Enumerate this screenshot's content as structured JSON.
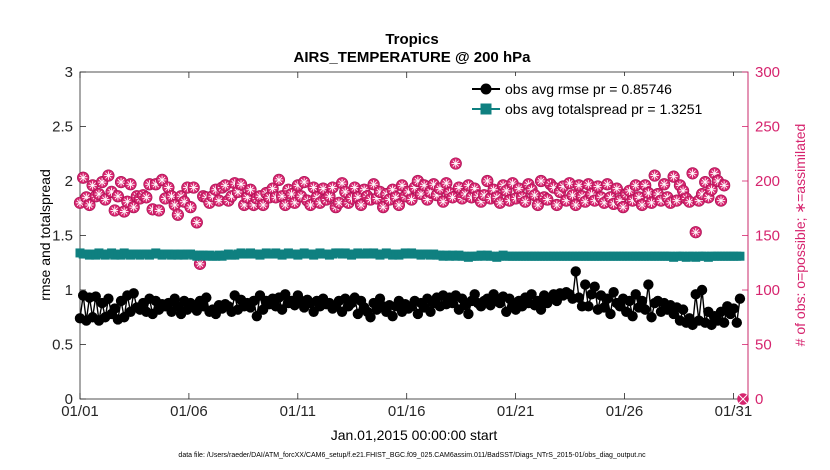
{
  "chart_data": {
    "type": "line",
    "title": "Tropics",
    "subtitle": "AIRS_TEMPERATURE @ 200 hPa",
    "xlabel": "Jan.01,2015 00:00:00 start",
    "ylabel": "rmse and totalspread",
    "ylabel_right": "# of obs: o=possible; ∗=assimilated",
    "ylim": [
      0,
      3
    ],
    "ylim_right": [
      0,
      300
    ],
    "xlim": [
      0,
      30.67
    ],
    "yticks": [
      "0",
      "0.5",
      "1",
      "1.5",
      "2",
      "2.5",
      "3"
    ],
    "yticks_right": [
      "0",
      "50",
      "100",
      "150",
      "200",
      "250",
      "300"
    ],
    "xticks": [
      "01/01",
      "01/06",
      "01/11",
      "01/16",
      "01/21",
      "01/26",
      "01/31"
    ],
    "xtick_days": [
      0,
      5,
      10,
      15,
      20,
      25,
      30
    ],
    "legend": {
      "position": "top-right",
      "entries": [
        "obs avg rmse pr = 0.85746",
        "obs avg totalspread pr = 1.3251"
      ]
    },
    "footer": "data file: /Users/raeder/DAI/ATM_forcXX/CAM6_setup/f.e21.FHIST_BGC.f09_025.CAM6assim.011/BadSST/Diags_NTrS_2015-01/obs_diag_output.nc",
    "series": [
      {
        "name": "obs avg rmse",
        "color": "#000000",
        "marker": "circle",
        "axis": "left",
        "values": [
          0.74,
          0.95,
          0.72,
          0.93,
          0.75,
          0.94,
          0.72,
          0.88,
          0.75,
          0.92,
          0.78,
          0.83,
          0.73,
          0.9,
          0.75,
          0.95,
          0.8,
          0.97,
          0.84,
          0.82,
          0.88,
          0.8,
          0.92,
          0.78,
          0.9,
          0.82,
          0.87,
          0.85,
          0.88,
          0.8,
          0.92,
          0.85,
          0.78,
          0.9,
          0.82,
          0.88,
          0.86,
          0.81,
          0.9,
          0.85,
          0.93,
          0.8,
          0.82,
          0.78,
          0.86,
          0.83,
          0.87,
          0.85,
          0.8,
          0.95,
          0.82,
          0.91,
          0.85,
          0.88,
          0.84,
          0.9,
          0.76,
          0.95,
          0.82,
          0.9,
          0.87,
          0.92,
          0.85,
          0.93,
          0.82,
          0.96,
          0.88,
          0.9,
          0.86,
          0.95,
          0.9,
          0.84,
          0.91,
          0.88,
          0.8,
          0.9,
          0.85,
          0.92,
          0.87,
          0.88,
          0.83,
          0.85,
          0.9,
          0.8,
          0.92,
          0.85,
          0.88,
          0.93,
          0.78,
          0.9,
          0.84,
          0.8,
          0.75,
          0.88,
          0.82,
          0.92,
          0.85,
          0.8,
          0.86,
          0.76,
          0.85,
          0.9,
          0.8,
          0.87,
          0.83,
          0.85,
          0.9,
          0.78,
          0.88,
          0.84,
          0.92,
          0.8,
          0.88,
          0.93,
          0.85,
          0.95,
          0.87,
          0.93,
          0.88,
          0.95,
          0.82,
          0.92,
          0.86,
          0.78,
          0.9,
          0.96,
          0.88,
          0.85,
          0.9,
          0.92,
          0.86,
          0.96,
          0.9,
          0.88,
          0.94,
          0.8,
          0.92,
          0.86,
          0.82,
          0.9,
          0.85,
          0.93,
          0.88,
          0.96,
          0.86,
          0.9,
          0.82,
          0.95,
          0.88,
          0.92,
          0.96,
          0.9,
          0.97,
          0.95,
          0.98,
          0.96,
          0.92,
          1.17,
          0.93,
          0.85,
          1.05,
          0.85,
          0.96,
          1.03,
          0.82,
          0.95,
          0.84,
          0.92,
          0.78,
          0.98,
          0.88,
          0.85,
          0.92,
          0.8,
          0.9,
          0.76,
          0.96,
          0.84,
          0.9,
          0.82,
          1.05,
          0.75,
          0.88,
          0.9,
          0.8,
          0.88,
          0.82,
          0.86,
          0.78,
          0.84,
          0.72,
          0.82,
          0.7,
          0.74,
          0.68,
          0.96,
          0.72,
          1.0,
          0.7,
          0.8,
          0.68,
          0.76,
          0.72,
          0.8,
          0.7,
          0.85,
          0.78,
          0.83,
          0.7,
          0.92
        ]
      },
      {
        "name": "obs avg totalspread",
        "color": "#0f8080",
        "marker": "square",
        "axis": "left",
        "values": [
          1.34,
          1.33,
          1.33,
          1.32,
          1.33,
          1.32,
          1.34,
          1.33,
          1.32,
          1.33,
          1.34,
          1.32,
          1.33,
          1.32,
          1.34,
          1.33,
          1.32,
          1.33,
          1.33,
          1.32,
          1.33,
          1.33,
          1.32,
          1.33,
          1.34,
          1.33,
          1.32,
          1.33,
          1.33,
          1.32,
          1.33,
          1.32,
          1.33,
          1.32,
          1.33,
          1.33,
          1.32,
          1.31,
          1.32,
          1.32,
          1.31,
          1.32,
          1.31,
          1.31,
          1.32,
          1.31,
          1.32,
          1.33,
          1.32,
          1.32,
          1.33,
          1.34,
          1.33,
          1.33,
          1.34,
          1.33,
          1.33,
          1.32,
          1.33,
          1.34,
          1.33,
          1.33,
          1.34,
          1.33,
          1.32,
          1.33,
          1.34,
          1.33,
          1.33,
          1.32,
          1.33,
          1.34,
          1.33,
          1.33,
          1.32,
          1.33,
          1.34,
          1.33,
          1.33,
          1.32,
          1.33,
          1.34,
          1.34,
          1.33,
          1.34,
          1.33,
          1.32,
          1.33,
          1.34,
          1.33,
          1.33,
          1.34,
          1.33,
          1.34,
          1.33,
          1.32,
          1.33,
          1.34,
          1.33,
          1.32,
          1.33,
          1.32,
          1.33,
          1.34,
          1.33,
          1.34,
          1.33,
          1.33,
          1.32,
          1.33,
          1.33,
          1.32,
          1.33,
          1.32,
          1.32,
          1.31,
          1.32,
          1.31,
          1.32,
          1.31,
          1.32,
          1.31,
          1.31,
          1.3,
          1.31,
          1.31,
          1.31,
          1.32,
          1.31,
          1.32,
          1.31,
          1.31,
          1.3,
          1.31,
          1.32,
          1.31,
          1.31,
          1.31,
          1.31,
          1.31,
          1.31,
          1.31,
          1.31,
          1.31,
          1.31,
          1.31,
          1.31,
          1.31,
          1.31,
          1.31,
          1.31,
          1.31,
          1.31,
          1.31,
          1.31,
          1.31,
          1.31,
          1.31,
          1.31,
          1.31,
          1.31,
          1.31,
          1.31,
          1.31,
          1.31,
          1.31,
          1.31,
          1.31,
          1.31,
          1.31,
          1.31,
          1.31,
          1.31,
          1.31,
          1.31,
          1.31,
          1.31,
          1.31,
          1.31,
          1.31,
          1.31,
          1.31,
          1.31,
          1.31,
          1.31,
          1.31,
          1.31,
          1.31,
          1.3,
          1.31,
          1.31,
          1.31,
          1.3,
          1.31,
          1.31,
          1.3,
          1.31,
          1.31,
          1.31,
          1.3,
          1.31,
          1.31,
          1.31,
          1.31,
          1.31,
          1.31,
          1.31,
          1.31,
          1.31,
          1.31
        ]
      },
      {
        "name": "# of obs",
        "color": "#d6246e",
        "marker": "circle-star",
        "axis": "right",
        "values": [
          180,
          203,
          185,
          178,
          196,
          186,
          188,
          199,
          183,
          205,
          190,
          173,
          186,
          199,
          172,
          181,
          197,
          176,
          186,
          184,
          187,
          185,
          197,
          174,
          197,
          173,
          201,
          184,
          194,
          186,
          178,
          169,
          186,
          181,
          194,
          176,
          194,
          162,
          124,
          186,
          185,
          180,
          186,
          192,
          182,
          194,
          196,
          182,
          186,
          198,
          190,
          197,
          178,
          185,
          192,
          178,
          184,
          186,
          178,
          189,
          185,
          193,
          185,
          201,
          186,
          178,
          192,
          188,
          180,
          196,
          186,
          199,
          182,
          178,
          194,
          185,
          180,
          193,
          183,
          186,
          194,
          176,
          180,
          198,
          190,
          180,
          184,
          194,
          185,
          178,
          192,
          186,
          183,
          197,
          184,
          190,
          176,
          188,
          183,
          192,
          185,
          178,
          196,
          186,
          190,
          183,
          194,
          200,
          188,
          196,
          183,
          190,
          197,
          187,
          193,
          181,
          198,
          189,
          185,
          216,
          194,
          184,
          188,
          196,
          185,
          193,
          186,
          181,
          187,
          200,
          184,
          192,
          185,
          180,
          196,
          191,
          182,
          198,
          184,
          193,
          185,
          181,
          197,
          192,
          187,
          178,
          200,
          185,
          183,
          197,
          194,
          178,
          190,
          195,
          182,
          198,
          187,
          178,
          196,
          186,
          181,
          197,
          188,
          182,
          195,
          185,
          180,
          197,
          185,
          179,
          193,
          182,
          176,
          188,
          191,
          182,
          196,
          185,
          178,
          196,
          189,
          180,
          205,
          188,
          182,
          197,
          185,
          180,
          204,
          182,
          196,
          191,
          184,
          181,
          207,
          153,
          182,
          188,
          199,
          185,
          192,
          207,
          200,
          182,
          196
        ]
      }
    ]
  }
}
